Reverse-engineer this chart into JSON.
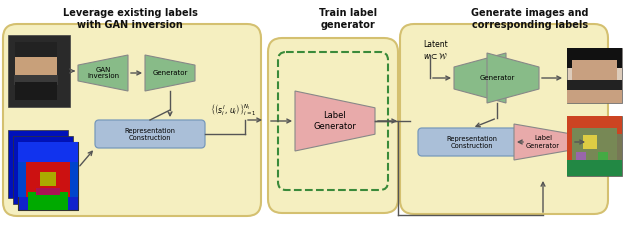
{
  "title1": "Leverage existing labels\nwith GAN inversion",
  "title2": "Train label\ngenerator",
  "title3": "Generate images and\ncorresponding labels",
  "bg_color": "#f5efc0",
  "green_fill": "#88bb88",
  "green_fill2": "#7ab87a",
  "pink_fill": "#e8aaaa",
  "blue_fill": "#aabfd8",
  "dashed_green": "#3a8a3a",
  "arrow_color": "#555555",
  "section_edge": "#d4c070",
  "math_label": "{(s_i^l, u_i)}_{i=1}^{N_l}"
}
